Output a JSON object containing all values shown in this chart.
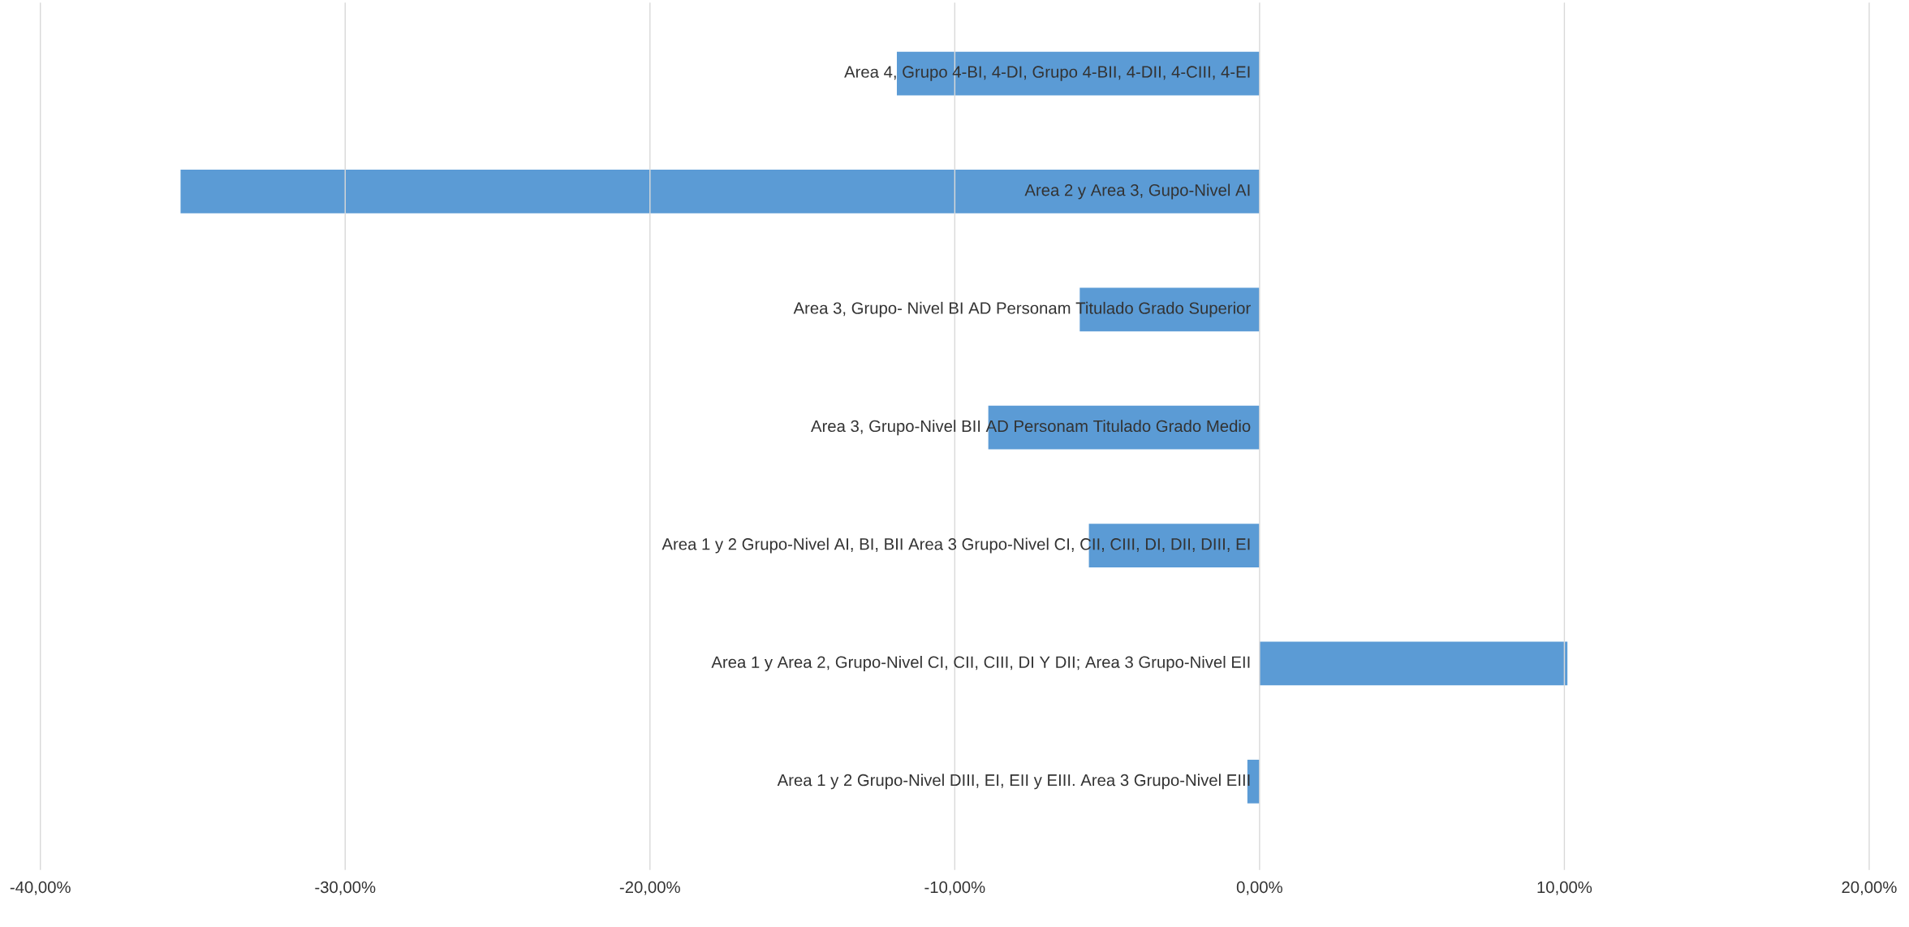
{
  "chart_data": {
    "type": "bar",
    "orientation": "horizontal",
    "categories": [
      "Area 4, Grupo 4-BI, 4-DI, Grupo 4-BII, 4-DII, 4-CIII, 4-EI",
      "Area 2 y Area 3, Gupo-Nivel AI",
      "Area 3, Grupo- Nivel BI AD Personam Titulado Grado Superior",
      "Area 3, Grupo-Nivel  BII AD Personam Titulado Grado Medio",
      "Area 1 y 2 Grupo-Nivel AI, BI, BII Area 3 Grupo-Nivel CI, CII, CIII, DI, DII, DIII, EI",
      "Area 1 y Area 2, Grupo-Nivel CI, CII, CIII, DI Y DII; Area 3 Grupo-Nivel EII",
      "Area 1 y 2 Grupo-Nivel DIII, EI, EII y EIII. Area 3 Grupo-Nivel EIII"
    ],
    "values": [
      -11.9,
      -35.4,
      -5.9,
      -8.9,
      -5.6,
      10.1,
      -0.4
    ],
    "color": "#5b9bd5",
    "xlim": [
      -40,
      20
    ],
    "xticks": [
      {
        "value": -40,
        "label": "-40,00%"
      },
      {
        "value": -30,
        "label": "-30,00%"
      },
      {
        "value": -20,
        "label": "-20,00%"
      },
      {
        "value": -10,
        "label": "-10,00%"
      },
      {
        "value": 0,
        "label": "0,00%"
      },
      {
        "value": 10,
        "label": "10,00%"
      },
      {
        "value": 20,
        "label": "20,00%"
      }
    ],
    "grid": "x"
  }
}
